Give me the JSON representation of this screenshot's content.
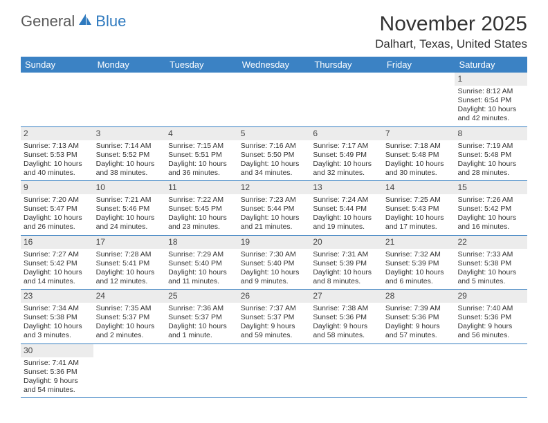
{
  "logo": {
    "general": "General",
    "blue": "Blue"
  },
  "title": "November 2025",
  "location": "Dalhart, Texas, United States",
  "colors": {
    "header_bg": "#3b82c4",
    "header_text": "#ffffff",
    "rule": "#2f7abf",
    "daynum_bg": "#ececec",
    "text": "#333333",
    "logo_gray": "#5a5a5a",
    "logo_blue": "#2f7abf"
  },
  "weekdays": [
    "Sunday",
    "Monday",
    "Tuesday",
    "Wednesday",
    "Thursday",
    "Friday",
    "Saturday"
  ],
  "first_weekday_index": 6,
  "num_days": 30,
  "days": {
    "1": {
      "sunrise": "8:12 AM",
      "sunset": "6:54 PM",
      "daylight": "10 hours and 42 minutes."
    },
    "2": {
      "sunrise": "7:13 AM",
      "sunset": "5:53 PM",
      "daylight": "10 hours and 40 minutes."
    },
    "3": {
      "sunrise": "7:14 AM",
      "sunset": "5:52 PM",
      "daylight": "10 hours and 38 minutes."
    },
    "4": {
      "sunrise": "7:15 AM",
      "sunset": "5:51 PM",
      "daylight": "10 hours and 36 minutes."
    },
    "5": {
      "sunrise": "7:16 AM",
      "sunset": "5:50 PM",
      "daylight": "10 hours and 34 minutes."
    },
    "6": {
      "sunrise": "7:17 AM",
      "sunset": "5:49 PM",
      "daylight": "10 hours and 32 minutes."
    },
    "7": {
      "sunrise": "7:18 AM",
      "sunset": "5:48 PM",
      "daylight": "10 hours and 30 minutes."
    },
    "8": {
      "sunrise": "7:19 AM",
      "sunset": "5:48 PM",
      "daylight": "10 hours and 28 minutes."
    },
    "9": {
      "sunrise": "7:20 AM",
      "sunset": "5:47 PM",
      "daylight": "10 hours and 26 minutes."
    },
    "10": {
      "sunrise": "7:21 AM",
      "sunset": "5:46 PM",
      "daylight": "10 hours and 24 minutes."
    },
    "11": {
      "sunrise": "7:22 AM",
      "sunset": "5:45 PM",
      "daylight": "10 hours and 23 minutes."
    },
    "12": {
      "sunrise": "7:23 AM",
      "sunset": "5:44 PM",
      "daylight": "10 hours and 21 minutes."
    },
    "13": {
      "sunrise": "7:24 AM",
      "sunset": "5:44 PM",
      "daylight": "10 hours and 19 minutes."
    },
    "14": {
      "sunrise": "7:25 AM",
      "sunset": "5:43 PM",
      "daylight": "10 hours and 17 minutes."
    },
    "15": {
      "sunrise": "7:26 AM",
      "sunset": "5:42 PM",
      "daylight": "10 hours and 16 minutes."
    },
    "16": {
      "sunrise": "7:27 AM",
      "sunset": "5:42 PM",
      "daylight": "10 hours and 14 minutes."
    },
    "17": {
      "sunrise": "7:28 AM",
      "sunset": "5:41 PM",
      "daylight": "10 hours and 12 minutes."
    },
    "18": {
      "sunrise": "7:29 AM",
      "sunset": "5:40 PM",
      "daylight": "10 hours and 11 minutes."
    },
    "19": {
      "sunrise": "7:30 AM",
      "sunset": "5:40 PM",
      "daylight": "10 hours and 9 minutes."
    },
    "20": {
      "sunrise": "7:31 AM",
      "sunset": "5:39 PM",
      "daylight": "10 hours and 8 minutes."
    },
    "21": {
      "sunrise": "7:32 AM",
      "sunset": "5:39 PM",
      "daylight": "10 hours and 6 minutes."
    },
    "22": {
      "sunrise": "7:33 AM",
      "sunset": "5:38 PM",
      "daylight": "10 hours and 5 minutes."
    },
    "23": {
      "sunrise": "7:34 AM",
      "sunset": "5:38 PM",
      "daylight": "10 hours and 3 minutes."
    },
    "24": {
      "sunrise": "7:35 AM",
      "sunset": "5:37 PM",
      "daylight": "10 hours and 2 minutes."
    },
    "25": {
      "sunrise": "7:36 AM",
      "sunset": "5:37 PM",
      "daylight": "10 hours and 1 minute."
    },
    "26": {
      "sunrise": "7:37 AM",
      "sunset": "5:37 PM",
      "daylight": "9 hours and 59 minutes."
    },
    "27": {
      "sunrise": "7:38 AM",
      "sunset": "5:36 PM",
      "daylight": "9 hours and 58 minutes."
    },
    "28": {
      "sunrise": "7:39 AM",
      "sunset": "5:36 PM",
      "daylight": "9 hours and 57 minutes."
    },
    "29": {
      "sunrise": "7:40 AM",
      "sunset": "5:36 PM",
      "daylight": "9 hours and 56 minutes."
    },
    "30": {
      "sunrise": "7:41 AM",
      "sunset": "5:36 PM",
      "daylight": "9 hours and 54 minutes."
    }
  },
  "labels": {
    "sunrise": "Sunrise:",
    "sunset": "Sunset:",
    "daylight": "Daylight:"
  }
}
